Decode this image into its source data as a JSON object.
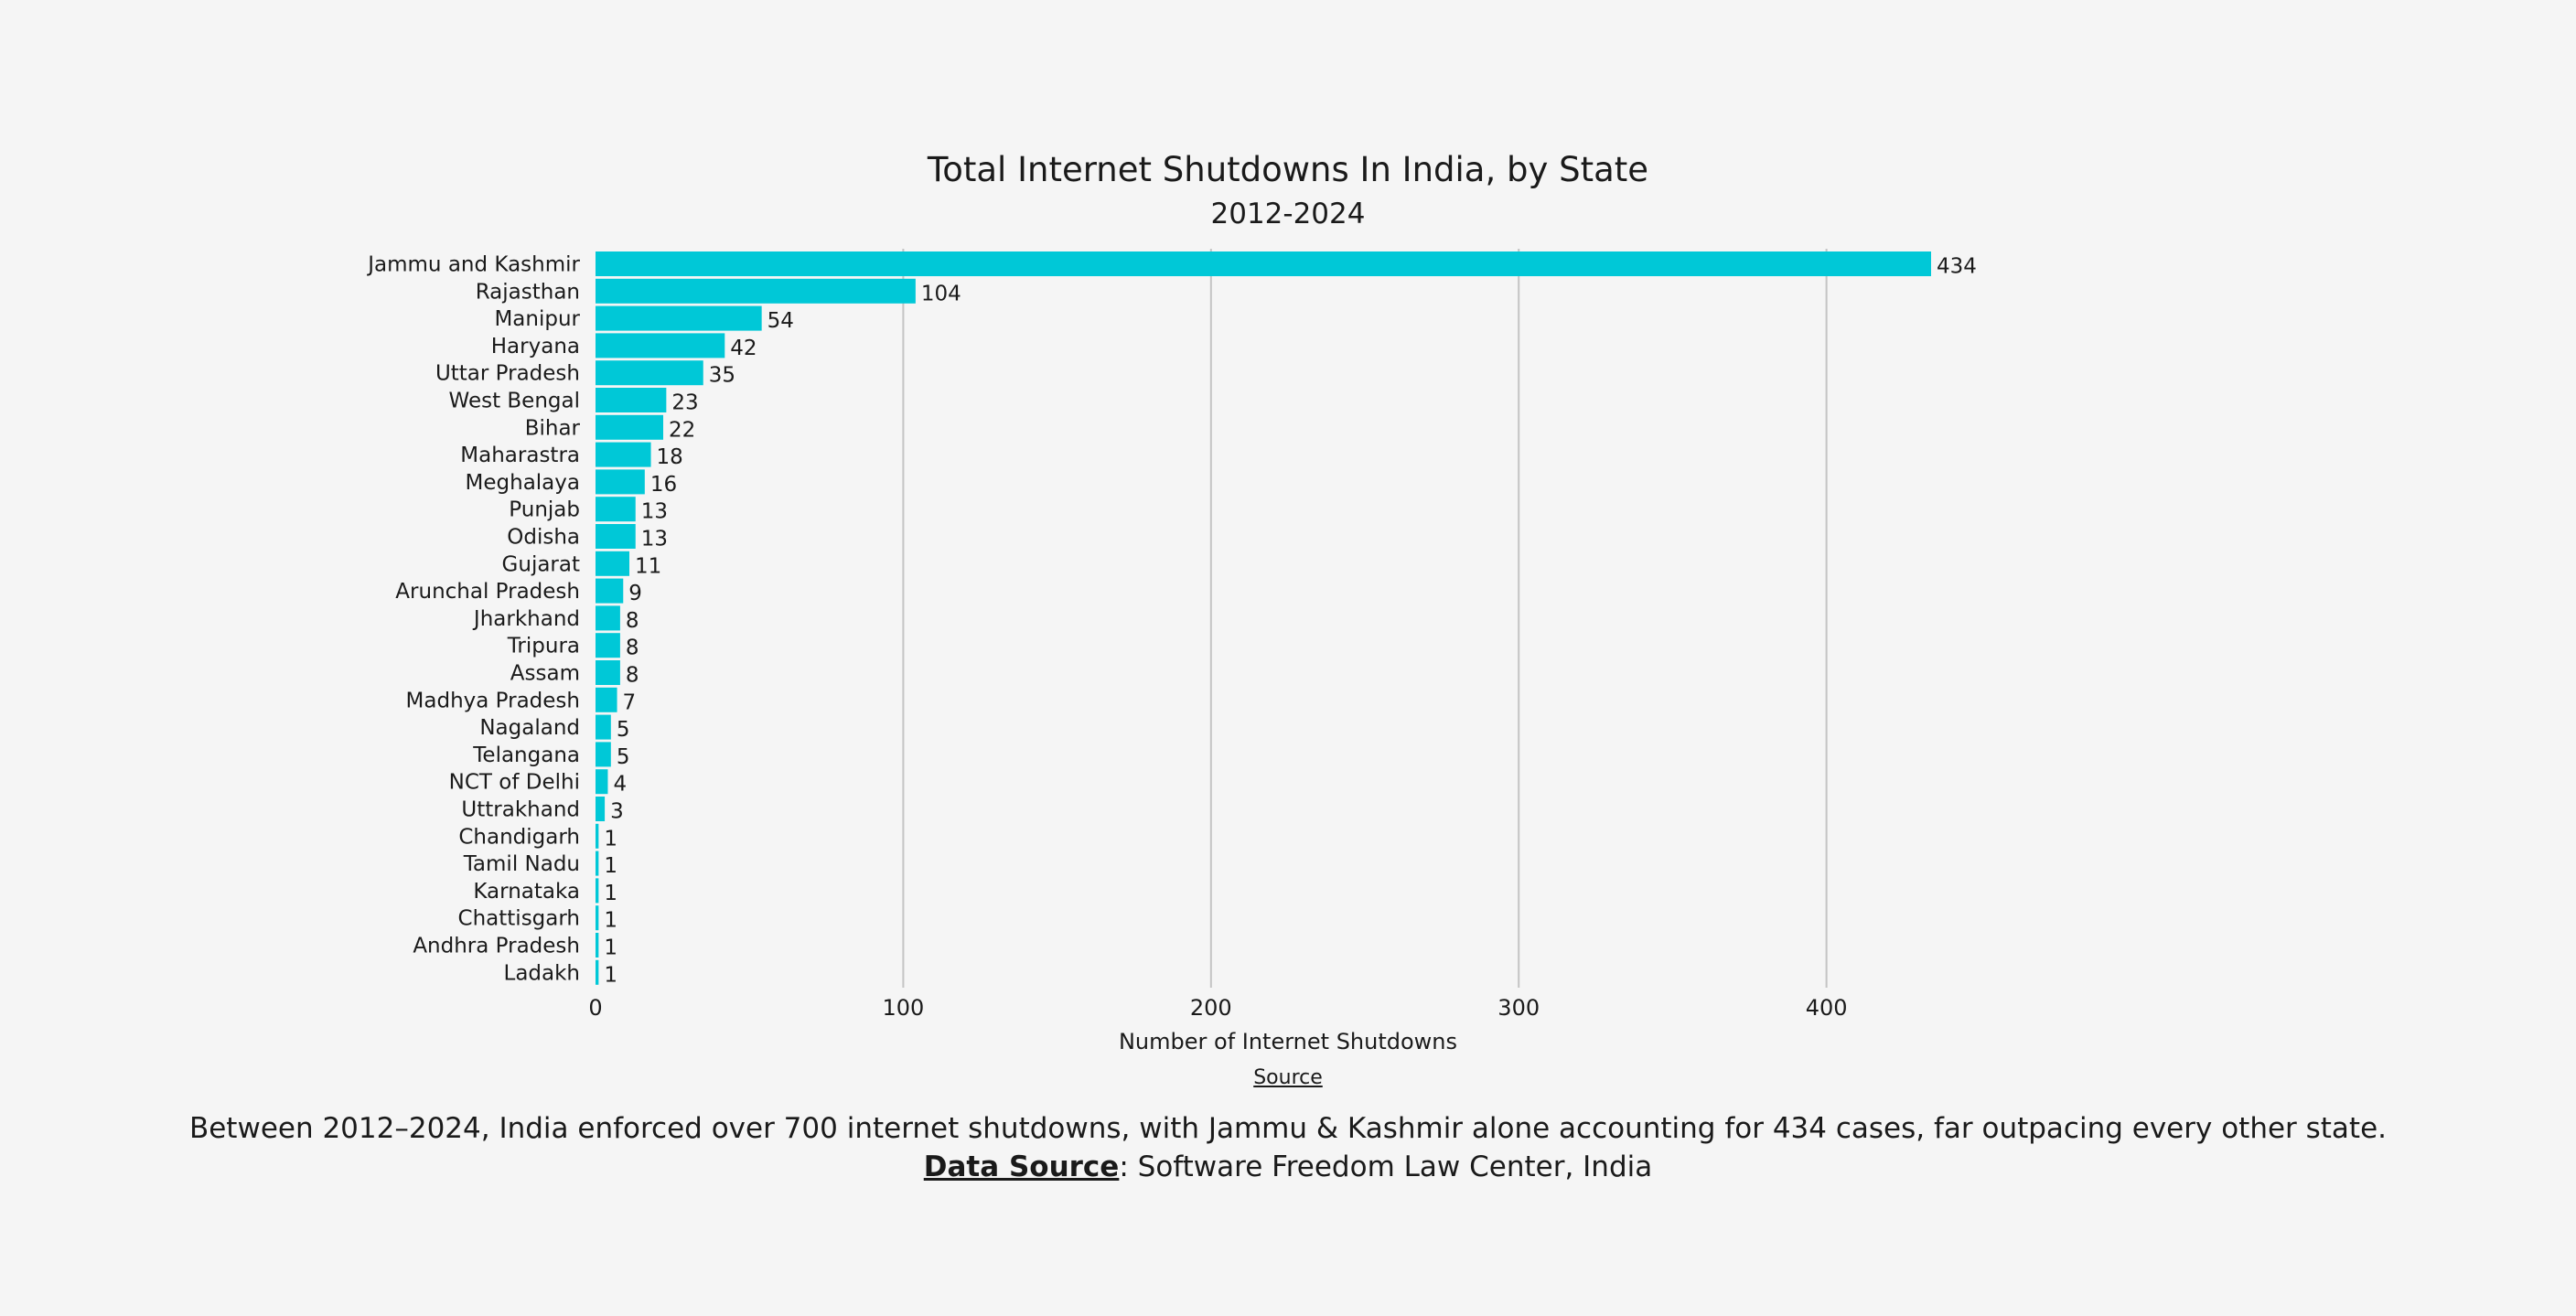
{
  "chart_data": {
    "type": "bar",
    "orientation": "horizontal",
    "title": "Total Internet Shutdowns In India, by State",
    "subtitle": "2012-2024",
    "xlabel": "Number of Internet Shutdowns",
    "ylabel": "",
    "xlim": [
      0,
      434
    ],
    "xticks": [
      0,
      100,
      200,
      300,
      400
    ],
    "grid": true,
    "bar_color": "#00c8d7",
    "categories": [
      "Jammu and Kashmir",
      "Rajasthan",
      "Manipur",
      "Haryana",
      "Uttar Pradesh",
      "West Bengal",
      "Bihar",
      "Maharastra",
      "Meghalaya",
      "Punjab",
      "Odisha",
      "Gujarat",
      "Arunchal Pradesh",
      "Jharkhand",
      "Tripura",
      "Assam",
      "Madhya Pradesh",
      "Nagaland",
      "Telangana",
      "NCT of Delhi",
      "Uttrakhand",
      "Chandigarh",
      "Tamil Nadu",
      "Karnataka",
      "Chattisgarh",
      "Andhra Pradesh",
      "Ladakh"
    ],
    "values": [
      434,
      104,
      54,
      42,
      35,
      23,
      22,
      18,
      16,
      13,
      13,
      11,
      9,
      8,
      8,
      8,
      7,
      5,
      5,
      4,
      3,
      1,
      1,
      1,
      1,
      1,
      1
    ]
  },
  "source_link": "Source",
  "caption": {
    "text": "Between 2012–2024, India enforced over 700 internet shutdowns, with Jammu & Kashmir alone accounting for 434 cases, far outpacing every other state.",
    "data_source_label": "Data Source",
    "data_source_text": ": Software Freedom Law Center, India"
  }
}
